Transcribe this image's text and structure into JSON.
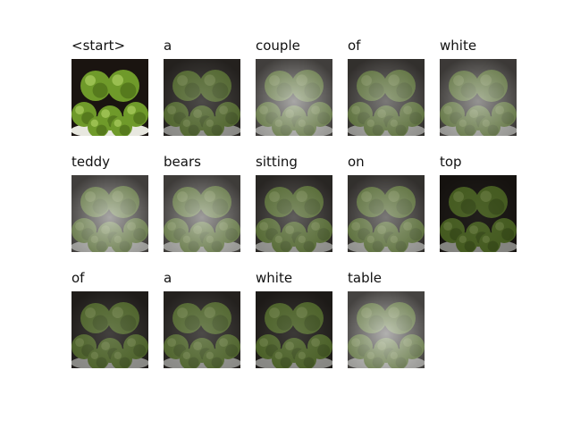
{
  "figure": {
    "tokens": [
      "<start>",
      "a",
      "couple",
      "of",
      "white",
      "teddy",
      "bears",
      "sitting",
      "on",
      "top",
      "of",
      "a",
      "white",
      "table"
    ],
    "attention_levels": [
      0.0,
      0.35,
      0.85,
      0.6,
      0.75,
      0.85,
      0.8,
      0.45,
      0.6,
      0.1,
      0.3,
      0.35,
      0.25,
      0.9
    ],
    "image_subject": "green apples in a bowl",
    "colors": {
      "apple": "#6f9a2a",
      "apple_highlight": "#b7d86a",
      "apple_dark": "#3d5a10",
      "bowl": "#e8e8e0",
      "background": "#1a1410",
      "attention_tint": "#ffffff"
    }
  }
}
